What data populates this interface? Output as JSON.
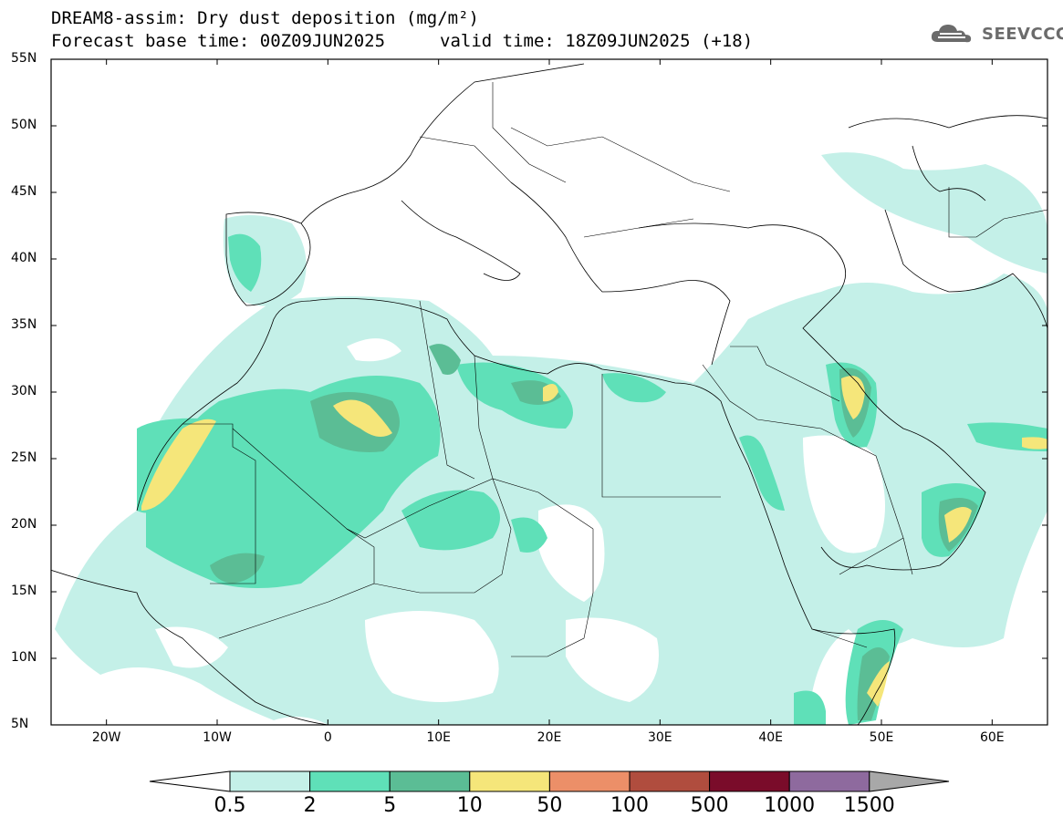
{
  "header": {
    "title_line1": "DREAM8-assim: Dry dust deposition (mg/m²)",
    "title_line2": "Forecast base time: 00Z09JUN2025",
    "valid_time": "valid time: 18Z09JUN2025 (+18)",
    "logo_text": "SEEVCCC",
    "logo_icon": "cloud-icon"
  },
  "map": {
    "lat_labels": [
      "55N",
      "50N",
      "45N",
      "40N",
      "35N",
      "30N",
      "25N",
      "20N",
      "15N",
      "10N",
      "5N"
    ],
    "lon_labels": [
      "20W",
      "10W",
      "0",
      "10E",
      "20E",
      "30E",
      "40E",
      "50E",
      "60E"
    ],
    "extent": {
      "lon_min": -25,
      "lon_max": 65,
      "lat_min": 5,
      "lat_max": 55
    }
  },
  "legend": {
    "labels": [
      "0.5",
      "2",
      "5",
      "10",
      "50",
      "100",
      "500",
      "1000",
      "1500"
    ],
    "colors": [
      "#c4f0e8",
      "#5fe0b8",
      "#5bbd95",
      "#f5e67a",
      "#ec8f68",
      "#b04d3e",
      "#7a0c2a",
      "#8e6a9e"
    ],
    "over_color": "#a8a8a8",
    "under_color": "#ffffff"
  }
}
